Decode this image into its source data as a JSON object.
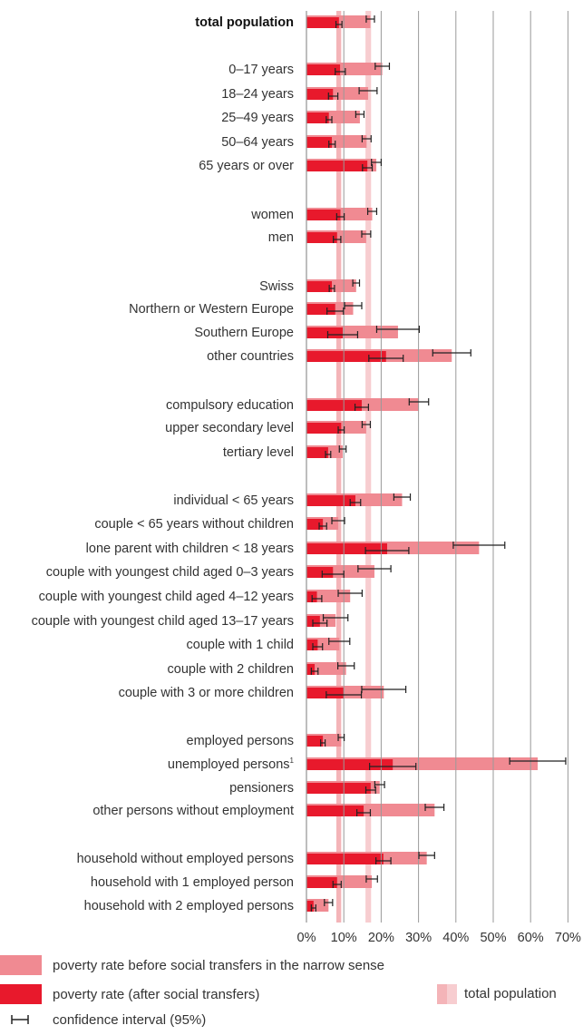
{
  "chart_data": {
    "type": "bar",
    "orientation": "horizontal",
    "x_ticks": [
      "0%",
      "10%",
      "20%",
      "30%",
      "40%",
      "50%",
      "60%",
      "70%"
    ],
    "xlim": [
      0,
      70
    ],
    "grid": true,
    "total_population_band": {
      "after": [
        8.0,
        9.3
      ],
      "before": [
        15.8,
        17.3
      ]
    },
    "colors": {
      "before": "#f08a92",
      "after": "#e8192c",
      "band_after": "#f4b4b8",
      "band_before": "#f7cdd0",
      "grid": "#9a9a9a",
      "ci": "#222222"
    },
    "categories": [
      {
        "label": "total population",
        "bold": true,
        "before": 17.1,
        "after": 8.7,
        "before_ci": [
          16.0,
          18.2
        ],
        "after_ci": [
          7.9,
          9.5
        ]
      },
      {
        "label": "0–17 years",
        "before": 20.3,
        "after": 9.0,
        "before_ci": [
          18.4,
          22.2
        ],
        "after_ci": [
          7.7,
          10.4
        ]
      },
      {
        "label": "18–24 years",
        "before": 16.5,
        "after": 7.1,
        "before_ci": [
          14.1,
          18.9
        ],
        "after_ci": [
          5.9,
          8.4
        ]
      },
      {
        "label": "25–49 years",
        "before": 14.3,
        "after": 6.0,
        "before_ci": [
          13.2,
          15.4
        ],
        "after_ci": [
          5.3,
          6.8
        ]
      },
      {
        "label": "50–64 years",
        "before": 16.1,
        "after": 6.8,
        "before_ci": [
          14.9,
          17.3
        ],
        "after_ci": [
          6.0,
          7.7
        ]
      },
      {
        "label": "65 years or over",
        "before": 18.7,
        "after": 16.3,
        "before_ci": [
          17.4,
          20.0
        ],
        "after_ci": [
          15.0,
          17.6
        ]
      },
      {
        "label": "women",
        "before": 17.6,
        "after": 9.1,
        "before_ci": [
          16.4,
          18.8
        ],
        "after_ci": [
          8.1,
          10.1
        ]
      },
      {
        "label": "men",
        "before": 16.0,
        "after": 8.2,
        "before_ci": [
          14.8,
          17.2
        ],
        "after_ci": [
          7.2,
          9.2
        ]
      },
      {
        "label": "Swiss",
        "before": 13.3,
        "after": 6.8,
        "before_ci": [
          12.4,
          14.2
        ],
        "after_ci": [
          6.1,
          7.5
        ]
      },
      {
        "label": "Northern or Western Europe",
        "before": 12.5,
        "after": 7.7,
        "before_ci": [
          10.2,
          14.8
        ],
        "after_ci": [
          5.5,
          9.9
        ]
      },
      {
        "label": "Southern Europe",
        "before": 24.5,
        "after": 9.7,
        "before_ci": [
          18.8,
          30.2
        ],
        "after_ci": [
          5.7,
          13.7
        ]
      },
      {
        "label": "other countries",
        "before": 38.9,
        "after": 21.3,
        "before_ci": [
          33.8,
          44.0
        ],
        "after_ci": [
          16.7,
          25.9
        ]
      },
      {
        "label": "compulsory education",
        "before": 30.1,
        "after": 14.8,
        "before_ci": [
          27.5,
          32.7
        ],
        "after_ci": [
          13.0,
          16.6
        ]
      },
      {
        "label": "upper secondary level",
        "before": 16.0,
        "after": 9.3,
        "before_ci": [
          14.9,
          17.1
        ],
        "after_ci": [
          8.5,
          10.1
        ]
      },
      {
        "label": "tertiary level",
        "before": 9.7,
        "after": 5.8,
        "before_ci": [
          8.8,
          10.6
        ],
        "after_ci": [
          5.1,
          6.5
        ]
      },
      {
        "label": "individual < 65 years",
        "before": 25.6,
        "after": 13.1,
        "before_ci": [
          23.4,
          27.8
        ],
        "after_ci": [
          11.7,
          14.5
        ]
      },
      {
        "label": "couple < 65 years without children",
        "before": 8.5,
        "after": 4.4,
        "before_ci": [
          6.8,
          10.2
        ],
        "after_ci": [
          3.4,
          5.4
        ]
      },
      {
        "label": "lone parent with children < 18 years",
        "before": 46.2,
        "after": 21.6,
        "before_ci": [
          39.3,
          53.1
        ],
        "after_ci": [
          15.8,
          27.4
        ]
      },
      {
        "label": "couple with youngest child aged 0–3 years",
        "before": 18.2,
        "after": 7.1,
        "before_ci": [
          13.8,
          22.6
        ],
        "after_ci": [
          4.2,
          10.0
        ]
      },
      {
        "label": "couple with youngest child aged 4–12 years",
        "before": 11.7,
        "after": 2.8,
        "before_ci": [
          8.5,
          14.9
        ],
        "after_ci": [
          1.5,
          4.1
        ]
      },
      {
        "label": "couple with youngest child aged 13–17 years",
        "before": 7.8,
        "after": 3.6,
        "before_ci": [
          4.5,
          11.1
        ],
        "after_ci": [
          1.7,
          5.5
        ]
      },
      {
        "label": "couple with 1 child",
        "before": 8.8,
        "after": 3.0,
        "before_ci": [
          6.0,
          11.6
        ],
        "after_ci": [
          1.7,
          4.3
        ]
      },
      {
        "label": "couple with 2 children",
        "before": 10.6,
        "after": 2.2,
        "before_ci": [
          8.4,
          12.8
        ],
        "after_ci": [
          1.3,
          3.1
        ]
      },
      {
        "label": "couple with 3 or more children",
        "before": 20.7,
        "after": 10.0,
        "before_ci": [
          14.8,
          26.6
        ],
        "after_ci": [
          5.3,
          14.7
        ]
      },
      {
        "label": "employed persons",
        "before": 9.3,
        "after": 4.4,
        "before_ci": [
          8.5,
          10.1
        ],
        "after_ci": [
          3.8,
          5.0
        ]
      },
      {
        "label": "unemployed persons",
        "sup": "1",
        "before": 61.9,
        "after": 23.1,
        "before_ci": [
          54.4,
          69.4
        ],
        "after_ci": [
          16.9,
          29.3
        ]
      },
      {
        "label": "pensioners",
        "before": 19.6,
        "after": 17.2,
        "before_ci": [
          18.3,
          20.9
        ],
        "after_ci": [
          15.9,
          18.5
        ]
      },
      {
        "label": "other persons without employment",
        "before": 34.3,
        "after": 15.3,
        "before_ci": [
          31.8,
          36.8
        ],
        "after_ci": [
          13.5,
          17.1
        ]
      },
      {
        "label": "household without employed persons",
        "before": 32.2,
        "after": 20.6,
        "before_ci": [
          30.1,
          34.3
        ],
        "after_ci": [
          18.6,
          22.6
        ]
      },
      {
        "label": "household with 1 employed person",
        "before": 17.5,
        "after": 8.2,
        "before_ci": [
          16.0,
          19.0
        ],
        "after_ci": [
          7.1,
          9.3
        ]
      },
      {
        "label": "household with 2 employed persons",
        "before": 5.9,
        "after": 1.9,
        "before_ci": [
          4.8,
          7.0
        ],
        "after_ci": [
          1.3,
          2.5
        ]
      }
    ]
  },
  "legend": {
    "before_label": "poverty rate before social transfers in the narrow sense",
    "after_label": "poverty rate (after social transfers)",
    "ci_label": "confidence interval (95%)",
    "total_population_label": "total population"
  }
}
